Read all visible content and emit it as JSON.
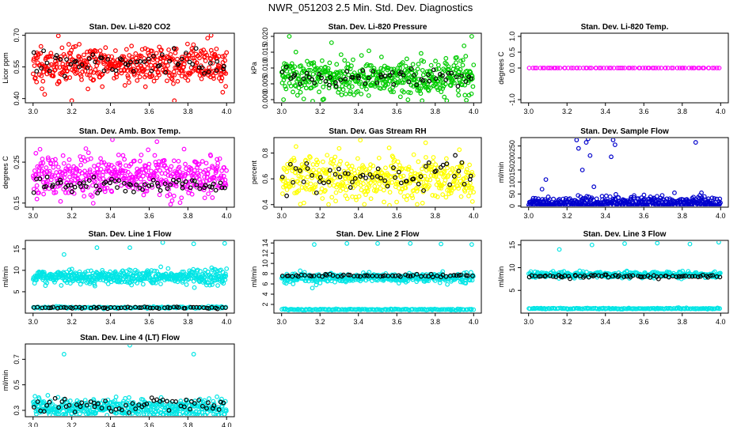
{
  "page": {
    "title": "NWR_051203  2.5 Min. Std. Dev. Diagnostics"
  },
  "chart_data": [
    {
      "type": "scatter",
      "title": "Stan. Dev. Li-820 CO2",
      "ylabel": "Licor ppm",
      "xlim": [
        3.0,
        4.0
      ],
      "ylim": [
        0.38,
        0.71
      ],
      "xticks": [
        "3.0",
        "3.2",
        "3.4",
        "3.6",
        "3.8",
        "4.0"
      ],
      "yticks": [
        {
          "v": 0.4,
          "label": "0.40"
        },
        {
          "v": 0.55,
          "label": "0.55"
        },
        {
          "v": 0.7,
          "label": "0.70"
        }
      ],
      "series": [
        {
          "name": "all",
          "color": "#ff0000",
          "n": 460,
          "seed": 11,
          "center": 0.56,
          "spread": 0.045,
          "outliers": [
            [
              3.06,
              0.42
            ],
            [
              3.2,
              0.39
            ],
            [
              3.73,
              0.39
            ],
            [
              3.92,
              0.7
            ],
            [
              3.98,
              0.43
            ]
          ]
        },
        {
          "name": "selected",
          "color": "#000000",
          "n": 60,
          "seed": 12,
          "center": 0.57,
          "spread": 0.035,
          "outliers": []
        }
      ]
    },
    {
      "type": "scatter",
      "title": "Stan. Dev. Li-820 Pressure",
      "ylabel": "kPa",
      "xlim": [
        3.0,
        4.0
      ],
      "ylim": [
        -0.001,
        0.021
      ],
      "xticks": [
        "3.0",
        "3.2",
        "3.4",
        "3.6",
        "3.8",
        "4.0"
      ],
      "yticks": [
        {
          "v": 0.0,
          "label": "0.000"
        },
        {
          "v": 0.005,
          "label": "0.005"
        },
        {
          "v": 0.01,
          "label": "0.010"
        },
        {
          "v": 0.015,
          "label": "0.015"
        },
        {
          "v": 0.02,
          "label": "0.020"
        }
      ],
      "series": [
        {
          "name": "all",
          "color": "#00cc00",
          "n": 460,
          "seed": 21,
          "center": 0.007,
          "spread": 0.0028,
          "outliers": [
            [
              3.04,
              0.02
            ],
            [
              3.26,
              0.018
            ],
            [
              3.99,
              0.02
            ],
            [
              3.95,
              0.017
            ],
            [
              3.01,
              0.0
            ]
          ]
        },
        {
          "name": "selected",
          "color": "#000000",
          "n": 60,
          "seed": 22,
          "center": 0.007,
          "spread": 0.0015,
          "outliers": []
        }
      ]
    },
    {
      "type": "scatter",
      "title": "Stan. Dev. Li-820 Temp.",
      "ylabel": "degrees C",
      "xlim": [
        3.0,
        4.0
      ],
      "ylim": [
        -1.1,
        1.1
      ],
      "xticks": [
        "3.0",
        "3.2",
        "3.4",
        "3.6",
        "3.8",
        "4.0"
      ],
      "yticks": [
        {
          "v": -1.0,
          "label": "-1.0"
        },
        {
          "v": 0.0,
          "label": "0.0"
        },
        {
          "v": 0.5,
          "label": "0.5"
        },
        {
          "v": 1.0,
          "label": "1.0"
        }
      ],
      "series": [
        {
          "name": "all",
          "color": "#ff00ff",
          "n": 80,
          "seed": 31,
          "center": 0.0,
          "spread": 0.0,
          "outliers": []
        },
        {
          "name": "selected",
          "color": "#000000",
          "n": 0,
          "seed": 32,
          "center": 0.0,
          "spread": 0.0,
          "outliers": []
        }
      ]
    },
    {
      "type": "scatter",
      "title": "Stan. Dev. Amb. Box Temp.",
      "ylabel": "degrees C",
      "xlim": [
        3.0,
        4.0
      ],
      "ylim": [
        0.14,
        0.31
      ],
      "xticks": [
        "3.0",
        "3.2",
        "3.4",
        "3.6",
        "3.8",
        "4.0"
      ],
      "yticks": [
        {
          "v": 0.15,
          "label": "0.15"
        },
        {
          "v": 0.25,
          "label": "0.25"
        }
      ],
      "series": [
        {
          "name": "all",
          "color": "#ff00ff",
          "n": 460,
          "seed": 41,
          "center": 0.215,
          "spread": 0.026,
          "outliers": [
            [
              3.41,
              0.305
            ],
            [
              3.64,
              0.3
            ],
            [
              3.02,
              0.16
            ]
          ]
        },
        {
          "name": "selected",
          "color": "#000000",
          "n": 70,
          "seed": 42,
          "center": 0.195,
          "spread": 0.01,
          "outliers": []
        }
      ]
    },
    {
      "type": "scatter",
      "title": "Stan. Dev. Gas Stream RH",
      "ylabel": "percent",
      "xlim": [
        3.0,
        4.0
      ],
      "ylim": [
        0.38,
        0.92
      ],
      "xticks": [
        "3.0",
        "3.2",
        "3.4",
        "3.6",
        "3.8",
        "4.0"
      ],
      "yticks": [
        {
          "v": 0.4,
          "label": "0.4"
        },
        {
          "v": 0.6,
          "label": "0.6"
        },
        {
          "v": 0.8,
          "label": "0.8"
        }
      ],
      "series": [
        {
          "name": "all",
          "color": "#ffff00",
          "n": 460,
          "seed": 51,
          "center": 0.6,
          "spread": 0.085,
          "outliers": [
            [
              3.41,
              0.9
            ],
            [
              3.75,
              0.88
            ],
            [
              3.56,
              0.84
            ]
          ]
        },
        {
          "name": "selected",
          "color": "#000000",
          "n": 60,
          "seed": 52,
          "center": 0.62,
          "spread": 0.06,
          "outliers": []
        }
      ]
    },
    {
      "type": "scatter",
      "title": "Stan. Dev. Sample Flow",
      "ylabel": "ml/min",
      "xlim": [
        3.0,
        4.0
      ],
      "ylim": [
        -5,
        285
      ],
      "xticks": [
        "3.0",
        "3.2",
        "3.4",
        "3.6",
        "3.8",
        "4.0"
      ],
      "yticks": [
        {
          "v": 0,
          "label": "0"
        },
        {
          "v": 50,
          "label": "50"
        },
        {
          "v": 100,
          "label": "100"
        },
        {
          "v": 150,
          "label": "150"
        },
        {
          "v": 200,
          "label": "200"
        },
        {
          "v": 250,
          "label": "250"
        }
      ],
      "series": [
        {
          "name": "all",
          "color": "#0000cc",
          "n": 430,
          "seed": 61,
          "center": 12,
          "spread": 14,
          "outliers": [
            [
              3.25,
              275
            ],
            [
              3.26,
              240
            ],
            [
              3.3,
              265
            ],
            [
              3.31,
              280
            ],
            [
              3.32,
              210
            ],
            [
              3.44,
              275
            ],
            [
              3.45,
              255
            ],
            [
              3.43,
              205
            ],
            [
              3.07,
              70
            ],
            [
              3.09,
              110
            ],
            [
              3.28,
              150
            ],
            [
              3.34,
              80
            ],
            [
              3.87,
              265
            ],
            [
              3.9,
              55
            ]
          ]
        },
        {
          "name": "selected",
          "color": "#000000",
          "n": 0,
          "seed": 62,
          "center": 0,
          "spread": 0,
          "outliers": []
        }
      ]
    },
    {
      "type": "scatter",
      "title": "Stan. Dev. Line 1 Flow",
      "ylabel": "ml/min",
      "xlim": [
        3.0,
        4.0
      ],
      "ylim": [
        0,
        17
      ],
      "xticks": [
        "3.0",
        "3.2",
        "3.4",
        "3.6",
        "3.8",
        "4.0"
      ],
      "yticks": [
        {
          "v": 5,
          "label": "5"
        },
        {
          "v": 10,
          "label": "10"
        },
        {
          "v": 15,
          "label": "15"
        }
      ],
      "series": [
        {
          "name": "line-flow",
          "color": "#00e5e5",
          "n": 470,
          "seed": 71,
          "center": 8.5,
          "spread": 0.8,
          "outliers": [
            [
              3.16,
              13.7
            ],
            [
              3.33,
              15.3
            ],
            [
              3.5,
              15.3
            ],
            [
              3.67,
              16.5
            ],
            [
              3.83,
              16.2
            ],
            [
              3.99,
              16.3
            ]
          ]
        },
        {
          "name": "base",
          "color": "#00e5e5",
          "n": 140,
          "seed": 72,
          "center": 1.3,
          "spread": 0.1,
          "outliers": []
        },
        {
          "name": "selected",
          "color": "#000000",
          "n": 60,
          "seed": 73,
          "center": 1.3,
          "spread": 0.1,
          "outliers": []
        }
      ]
    },
    {
      "type": "scatter",
      "title": "Stan. Dev. Line 2 Flow",
      "ylabel": "ml/min",
      "xlim": [
        3.0,
        4.0
      ],
      "ylim": [
        0.3,
        14.5
      ],
      "xticks": [
        "3.0",
        "3.2",
        "3.4",
        "3.6",
        "3.8",
        "4.0"
      ],
      "yticks": [
        {
          "v": 2,
          "label": "2"
        },
        {
          "v": 4,
          "label": "4"
        },
        {
          "v": 6,
          "label": "6"
        },
        {
          "v": 8,
          "label": "8"
        },
        {
          "v": 10,
          "label": "10"
        },
        {
          "v": 12,
          "label": "12"
        },
        {
          "v": 14,
          "label": "14"
        }
      ],
      "series": [
        {
          "name": "line-flow",
          "color": "#00e5e5",
          "n": 360,
          "seed": 81,
          "center": 7.2,
          "spread": 0.45,
          "outliers": [
            [
              3.16,
              5.2
            ],
            [
              3.18,
              5.8
            ],
            [
              3.06,
              6.0
            ],
            [
              3.17,
              13.7
            ],
            [
              3.34,
              13.9
            ],
            [
              3.5,
              13.9
            ],
            [
              3.67,
              13.9
            ],
            [
              3.83,
              13.8
            ],
            [
              3.99,
              13.7
            ]
          ]
        },
        {
          "name": "base",
          "color": "#00e5e5",
          "n": 160,
          "seed": 82,
          "center": 1.0,
          "spread": 0.06,
          "outliers": []
        },
        {
          "name": "selected",
          "color": "#000000",
          "n": 60,
          "seed": 83,
          "center": 7.6,
          "spread": 0.12,
          "outliers": []
        }
      ]
    },
    {
      "type": "scatter",
      "title": "Stan. Dev. Line 3 Flow",
      "ylabel": "ml/min",
      "xlim": [
        3.0,
        4.0
      ],
      "ylim": [
        0,
        16
      ],
      "xticks": [
        "3.0",
        "3.2",
        "3.4",
        "3.6",
        "3.8",
        "4.0"
      ],
      "yticks": [
        {
          "v": 5,
          "label": "5"
        },
        {
          "v": 10,
          "label": "10"
        },
        {
          "v": 15,
          "label": "15"
        }
      ],
      "series": [
        {
          "name": "line-flow",
          "color": "#00e5e5",
          "n": 320,
          "seed": 91,
          "center": 8.4,
          "spread": 0.35,
          "outliers": [
            [
              3.16,
              14.0
            ],
            [
              3.33,
              15.0
            ],
            [
              3.5,
              15.3
            ],
            [
              3.67,
              15.4
            ],
            [
              3.84,
              15.2
            ],
            [
              3.99,
              15.6
            ]
          ]
        },
        {
          "name": "base",
          "color": "#00e5e5",
          "n": 160,
          "seed": 92,
          "center": 1.0,
          "spread": 0.06,
          "outliers": []
        },
        {
          "name": "selected",
          "color": "#000000",
          "n": 70,
          "seed": 93,
          "center": 8.1,
          "spread": 0.2,
          "outliers": []
        }
      ]
    },
    {
      "type": "scatter",
      "title": "Stan. Dev. Line 4 (LT) Flow",
      "ylabel": "ml/min",
      "xlim": [
        3.0,
        4.0
      ],
      "ylim": [
        0.25,
        0.82
      ],
      "xticks": [
        "3.0",
        "3.2",
        "3.4",
        "3.6",
        "3.8",
        "4.0"
      ],
      "yticks": [
        {
          "v": 0.3,
          "label": "0.3"
        },
        {
          "v": 0.5,
          "label": "0.5"
        },
        {
          "v": 0.7,
          "label": "0.7"
        }
      ],
      "series": [
        {
          "name": "line-flow",
          "color": "#00e5e5",
          "n": 440,
          "seed": 101,
          "center": 0.32,
          "spread": 0.035,
          "outliers": [
            [
              3.16,
              0.74
            ],
            [
              3.5,
              0.81
            ],
            [
              3.83,
              0.74
            ],
            [
              3.03,
              0.4
            ]
          ]
        },
        {
          "name": "selected",
          "color": "#000000",
          "n": 60,
          "seed": 102,
          "center": 0.34,
          "spread": 0.025,
          "outliers": []
        }
      ]
    }
  ]
}
